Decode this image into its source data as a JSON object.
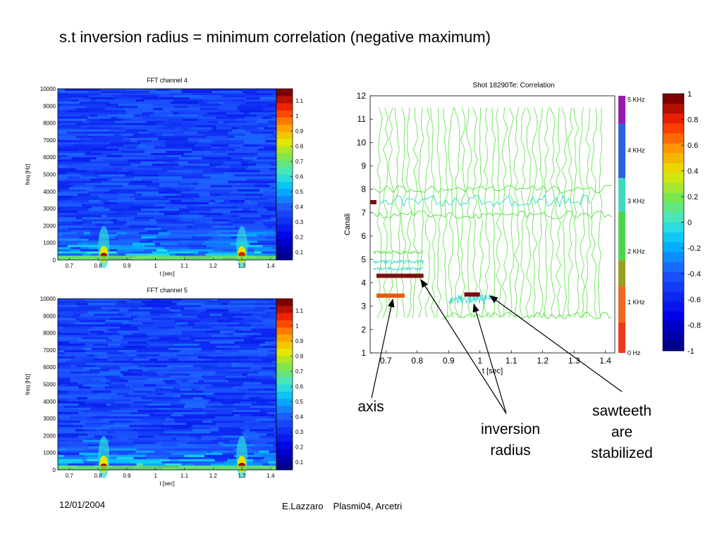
{
  "slide": {
    "title": "s.t inversion radius = minimum correlation (negative maximum)",
    "date": "12/01/2004",
    "author": "E.Lazzaro",
    "event": "Plasmi04, Arcetri"
  },
  "annotations": {
    "axis": "axis",
    "inversion": [
      "inversion",
      "radius"
    ],
    "sawteeth": [
      "sawteeth",
      "are",
      "stabilized"
    ]
  },
  "colors": {
    "background": "#ffffff",
    "spectrogram_base": "#2a5de0",
    "contour_green": "#5ee04a",
    "contour_cyan": "#3cd8d0"
  },
  "chart_data": [
    {
      "type": "heatmap",
      "title": "FFT channel  4",
      "xlabel": "t [sec]",
      "ylabel": "freq [Hz]",
      "xlim": [
        0.66,
        1.42
      ],
      "ylim": [
        0,
        10000
      ],
      "x_ticks": [
        "0.7",
        "0.8",
        "0.9",
        "1",
        "1.1",
        "1.2",
        "1.3",
        "1.4"
      ],
      "y_ticks": [
        "0",
        "1000",
        "2000",
        "3000",
        "4000",
        "5000",
        "6000",
        "7000",
        "8000",
        "9000",
        "10000"
      ],
      "colorbar_ticks": [
        "0.1",
        "0.2",
        "0.3",
        "0.4",
        "0.5",
        "0.6",
        "0.7",
        "0.8",
        "0.9",
        "1",
        "1.1"
      ],
      "colorbar_range": [
        0.05,
        1.18
      ],
      "hotspots": [
        {
          "t": 0.82,
          "freq": 250,
          "level": 1.15
        },
        {
          "t": 1.3,
          "freq": 300,
          "level": 1.1
        }
      ]
    },
    {
      "type": "heatmap",
      "title": "FFT channel  5",
      "xlabel": "t [sec]",
      "ylabel": "freq [Hz]",
      "xlim": [
        0.66,
        1.42
      ],
      "ylim": [
        0,
        10000
      ],
      "x_ticks": [
        "0.7",
        "0.8",
        "0.9",
        "1",
        "1.1",
        "1.2",
        "1.3",
        "1.4"
      ],
      "y_ticks": [
        "0",
        "1000",
        "2000",
        "3000",
        "4000",
        "5000",
        "6000",
        "7000",
        "8000",
        "9000",
        "10000"
      ],
      "colorbar_ticks": [
        "0.1",
        "0.2",
        "0.3",
        "0.4",
        "0.5",
        "0.6",
        "0.7",
        "0.8",
        "0.9",
        "1",
        "1.1"
      ],
      "colorbar_range": [
        0.05,
        1.18
      ],
      "hotspots": [
        {
          "t": 0.82,
          "freq": 200,
          "level": 1.15
        },
        {
          "t": 1.3,
          "freq": 250,
          "level": 1.15
        }
      ]
    },
    {
      "type": "heatmap",
      "title": "Shot 18290Te:  Correlation",
      "xlabel": "t [sec]",
      "ylabel": "Canali",
      "xlim": [
        0.65,
        1.43
      ],
      "ylim": [
        1,
        12
      ],
      "x_ticks": [
        "0.7",
        "0.8",
        "0.9",
        "1",
        "1.1",
        "1.2",
        "1.3",
        "1.4"
      ],
      "y_ticks": [
        "1",
        "2",
        "3",
        "4",
        "5",
        "6",
        "7",
        "8",
        "9",
        "10",
        "11",
        "12"
      ],
      "freq_bar_labels": [
        "0 Hz",
        "1 KHz",
        "2 KHz",
        "3 KHz",
        "4 KHz",
        "5 KHz"
      ],
      "colorbar_ticks": [
        "-1",
        "-0.8",
        "-0.6",
        "-0.4",
        "-0.2",
        "0",
        "0.2",
        "0.4",
        "0.6",
        "0.8",
        "1"
      ],
      "colorbar_range": [
        -1,
        1
      ],
      "markers": [
        {
          "name": "axis-band",
          "t_start": 0.67,
          "t_end": 0.76,
          "channel": 3.45,
          "color": "#e85a10"
        },
        {
          "name": "inversion-band-1",
          "t_start": 0.67,
          "t_end": 0.82,
          "channel": 4.3,
          "color": "#7a1010"
        },
        {
          "name": "inversion-band-2",
          "t_start": 0.95,
          "t_end": 1.0,
          "channel": 3.5,
          "color": "#7a1010"
        },
        {
          "name": "top-marker",
          "t_start": 0.65,
          "t_end": 0.67,
          "channel": 7.45,
          "color": "#7a1010"
        }
      ]
    }
  ]
}
